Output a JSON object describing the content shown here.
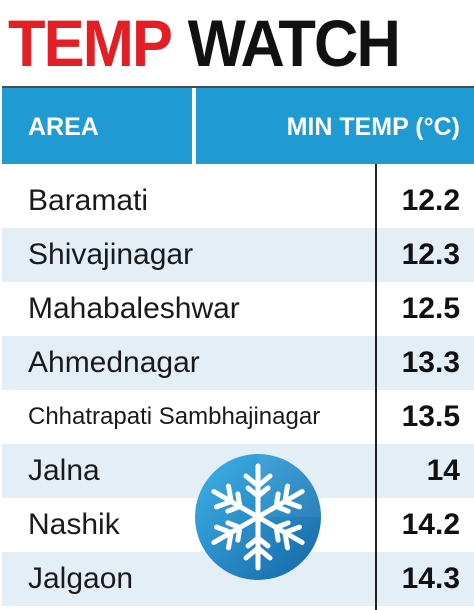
{
  "title": {
    "part1": "TEMP",
    "part2": "WATCH"
  },
  "colors": {
    "title_red": "#e31e24",
    "header_blue": "#1f9ad3",
    "row_alt": "#e3eef7"
  },
  "icon": "snowflake-icon",
  "chart_data": {
    "type": "table",
    "columns": [
      "AREA",
      "MIN TEMP (°C)"
    ],
    "rows": [
      {
        "area": "Baramati",
        "temp": "12.2"
      },
      {
        "area": "Shivajinagar",
        "temp": "12.3"
      },
      {
        "area": "Mahabaleshwar",
        "temp": "12.5"
      },
      {
        "area": "Ahmednagar",
        "temp": "13.3"
      },
      {
        "area": "Chhatrapati Sambhajinagar",
        "temp": "13.5"
      },
      {
        "area": "Jalna",
        "temp": "14"
      },
      {
        "area": "Nashik",
        "temp": "14.2"
      },
      {
        "area": "Jalgaon",
        "temp": "14.3"
      }
    ]
  }
}
